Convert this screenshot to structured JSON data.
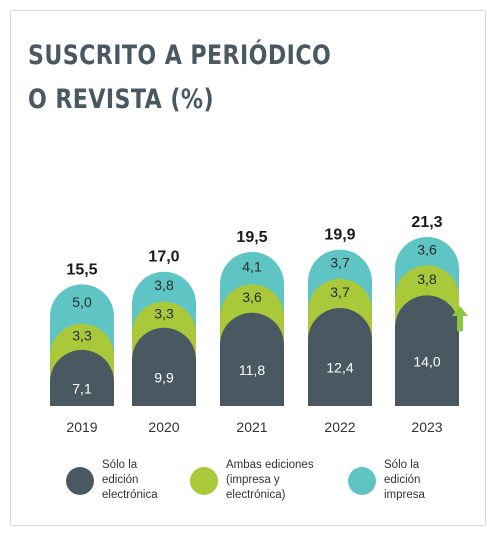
{
  "title_lines": [
    "SUSCRITO A PERIÓDICO",
    "O REVISTA (%)"
  ],
  "colors": {
    "electronic": "#4a5961",
    "both": "#a9c93a",
    "print": "#5ec4c4",
    "arrow": "#8dc63f",
    "text": "#1a1a1a"
  },
  "chart_data": {
    "type": "bar",
    "stacked": true,
    "title": "SUSCRITO A PERIÓDICO O REVISTA (%)",
    "categories": [
      "2019",
      "2020",
      "2021",
      "2022",
      "2023"
    ],
    "series": [
      {
        "name": "Sólo la edición electrónica",
        "values": [
          7.1,
          9.9,
          11.8,
          12.4,
          14.0
        ],
        "labels": [
          "7,1",
          "9,9",
          "11,8",
          "12,4",
          "14,0"
        ]
      },
      {
        "name": "Ambas ediciones (impresa y electrónica)",
        "values": [
          3.3,
          3.3,
          3.6,
          3.7,
          3.8
        ],
        "labels": [
          "3,3",
          "3,3",
          "3,6",
          "3,7",
          "3,8"
        ]
      },
      {
        "name": "Sólo la edición impresa",
        "values": [
          5.0,
          3.8,
          4.1,
          3.7,
          3.6
        ],
        "labels": [
          "5,0",
          "3,8",
          "4,1",
          "3,7",
          "3,6"
        ]
      }
    ],
    "totals": [
      15.5,
      17.0,
      19.5,
      19.9,
      21.3
    ],
    "total_labels": [
      "15,5",
      "17,0",
      "19,5",
      "19,9",
      "21,3"
    ],
    "annotations": [
      "up-arrow-2023-electronic"
    ],
    "grid": false,
    "legend_position": "bottom"
  },
  "legend": [
    {
      "label": "Sólo la\nedición\nelectrónica",
      "color": "#4a5961"
    },
    {
      "label": "Ambas ediciones\n(impresa y\nelectrónica)",
      "color": "#a9c93a"
    },
    {
      "label": "Sólo la\nedición\nimpresa",
      "color": "#5ec4c4"
    }
  ]
}
